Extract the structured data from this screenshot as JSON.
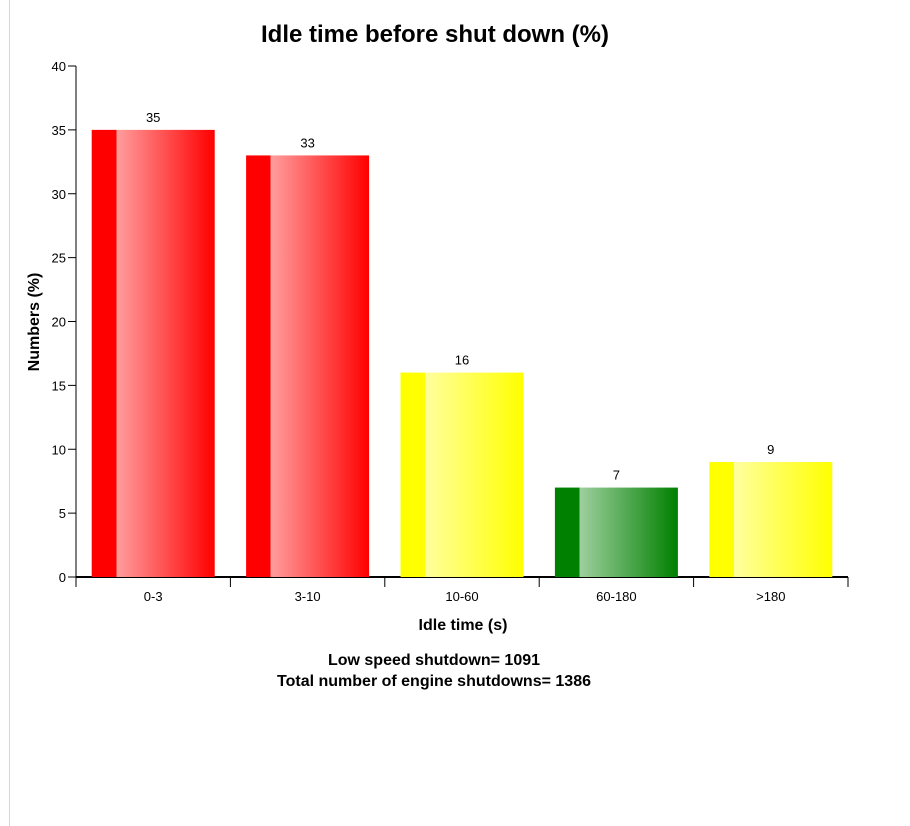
{
  "chart_data": {
    "type": "bar",
    "title": "Idle time before shut down (%)",
    "xlabel": "Idle time (s)",
    "ylabel": "Numbers (%)",
    "categories": [
      "0-3",
      "3-10",
      "10-60",
      "60-180",
      ">180"
    ],
    "values": [
      35,
      33,
      16,
      7,
      9
    ],
    "data_labels": [
      "35",
      "33",
      "16",
      "7",
      "9"
    ],
    "bar_colors": [
      "#ff0000",
      "#ff0000",
      "#ffff00",
      "#008000",
      "#ffff00"
    ],
    "ylim": [
      0,
      40
    ],
    "yticks": [
      0,
      5,
      10,
      15,
      20,
      25,
      30,
      35,
      40
    ],
    "grid": false,
    "legend": "none"
  },
  "footer": {
    "line1": "Low speed shutdown= 1091",
    "line2": "Total number of engine shutdowns= 1386"
  }
}
